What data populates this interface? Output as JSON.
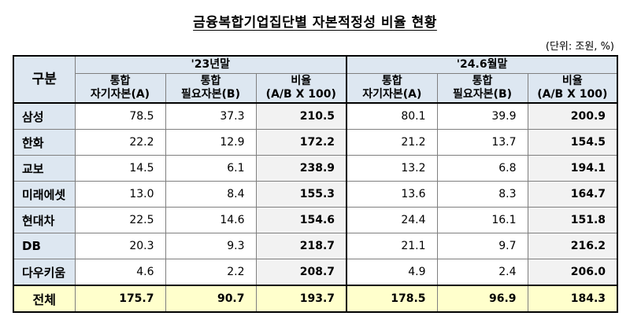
{
  "title": "금융복합기업집단별 자본적정성 비율 현황",
  "unit": "(단위: 조원, %)",
  "header": {
    "category": "구분",
    "periods": [
      "'23년말",
      "'24.6월말"
    ],
    "columns": [
      [
        "통합",
        "자기자본(A)"
      ],
      [
        "통합",
        "필요자본(B)"
      ],
      [
        "비율",
        "(A/B X 100)"
      ]
    ]
  },
  "rows": [
    {
      "name": "삼성",
      "values": [
        "78.5",
        "37.3",
        "210.5",
        "80.1",
        "39.9",
        "200.9"
      ]
    },
    {
      "name": "한화",
      "values": [
        "22.2",
        "12.9",
        "172.2",
        "21.2",
        "13.7",
        "154.5"
      ]
    },
    {
      "name": "교보",
      "values": [
        "14.5",
        "6.1",
        "238.9",
        "13.2",
        "6.8",
        "194.1"
      ]
    },
    {
      "name": "미래에셋",
      "values": [
        "13.0",
        "8.4",
        "155.3",
        "13.6",
        "8.3",
        "164.7"
      ]
    },
    {
      "name": "현대차",
      "values": [
        "22.5",
        "14.6",
        "154.6",
        "24.4",
        "16.1",
        "151.8"
      ]
    },
    {
      "name": "DB",
      "values": [
        "20.3",
        "9.3",
        "218.7",
        "21.1",
        "9.7",
        "216.2"
      ]
    },
    {
      "name": "다우키움",
      "values": [
        "4.6",
        "2.2",
        "208.7",
        "4.9",
        "2.4",
        "206.0"
      ]
    }
  ],
  "total": {
    "name": "전체",
    "values": [
      "175.7",
      "90.7",
      "193.7",
      "178.5",
      "96.9",
      "184.3"
    ]
  }
}
